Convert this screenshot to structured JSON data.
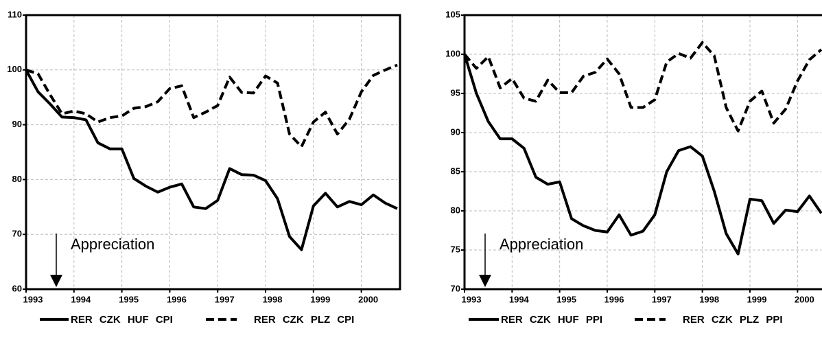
{
  "chart_data": [
    {
      "type": "line",
      "x": [
        1993,
        1993.25,
        1993.5,
        1993.75,
        1994,
        1994.25,
        1994.5,
        1994.75,
        1995,
        1995.25,
        1995.5,
        1995.75,
        1996,
        1996.25,
        1996.5,
        1996.75,
        1997,
        1997.25,
        1997.5,
        1997.75,
        1998,
        1998.25,
        1998.5,
        1998.75,
        1999,
        1999.25,
        1999.5,
        1999.75,
        2000,
        2000.25,
        2000.5,
        2000.75
      ],
      "series": [
        {
          "name": "RER CZK HUF CPI",
          "color": "#000000",
          "dash": "solid",
          "values": [
            100,
            96,
            93.8,
            91.4,
            91.3,
            90.9,
            86.7,
            85.6,
            85.6,
            80.2,
            78.8,
            77.7,
            78.6,
            79.2,
            75,
            74.7,
            76.2,
            82,
            80.9,
            80.8,
            79.8,
            76.5,
            69.6,
            67.2,
            75.2,
            77.5,
            75,
            76,
            75.4,
            77.2,
            75.7,
            74.7
          ]
        },
        {
          "name": "RER CZK PLZ CPI",
          "color": "#000000",
          "dash": "dashed",
          "values": [
            100,
            99.3,
            95.5,
            92,
            92.5,
            92,
            90.5,
            91.3,
            91.6,
            93,
            93.3,
            94.2,
            96.6,
            97.1,
            91.3,
            92.3,
            93.5,
            98.7,
            95.9,
            95.8,
            98.9,
            97.6,
            88.3,
            86,
            90.5,
            92.3,
            88.3,
            91,
            96,
            99,
            100,
            100.9
          ]
        }
      ],
      "xlim": [
        1993,
        2000.75
      ],
      "ylim": [
        60,
        110
      ],
      "xticks": [
        1993,
        1994,
        1995,
        1996,
        1997,
        1998,
        1999,
        2000
      ],
      "yticks": [
        60,
        70,
        80,
        90,
        100,
        110
      ],
      "grid": true,
      "annotation": "Appreciation"
    },
    {
      "type": "line",
      "x": [
        1993,
        1993.25,
        1993.5,
        1993.75,
        1994,
        1994.25,
        1994.5,
        1994.75,
        1995,
        1995.25,
        1995.5,
        1995.75,
        1996,
        1996.25,
        1996.5,
        1996.75,
        1997,
        1997.25,
        1997.5,
        1997.75,
        1998,
        1998.25,
        1998.5,
        1998.75,
        1999,
        1999.25,
        1999.5,
        1999.75,
        2000,
        2000.25,
        2000.5
      ],
      "series": [
        {
          "name": "RER CZK HUF PPI",
          "color": "#000000",
          "dash": "solid",
          "values": [
            100,
            95,
            91.4,
            89.2,
            89.2,
            88,
            84.3,
            83.4,
            83.7,
            79,
            78.1,
            77.5,
            77.3,
            79.5,
            76.9,
            77.4,
            79.5,
            85,
            87.7,
            88.2,
            87,
            82.5,
            77.1,
            74.5,
            81.5,
            81.3,
            78.4,
            80.1,
            79.9,
            81.9,
            79.7
          ]
        },
        {
          "name": "RER CZK PLZ PPI",
          "color": "#000000",
          "dash": "dashed",
          "values": [
            100,
            98.2,
            99.7,
            95.7,
            96.9,
            94.4,
            94,
            96.7,
            95.1,
            95.1,
            97.2,
            97.7,
            99.4,
            97.5,
            93.2,
            93.2,
            94.2,
            99,
            100.1,
            99.5,
            101.5,
            99.8,
            93.2,
            90.2,
            94,
            95.3,
            91.2,
            93,
            96.6,
            99.3,
            100.6
          ]
        }
      ],
      "xlim": [
        1993,
        2000.5
      ],
      "ylim": [
        70,
        105
      ],
      "xticks": [
        1993,
        1994,
        1995,
        1996,
        1997,
        1998,
        1999,
        2000
      ],
      "yticks": [
        70,
        75,
        80,
        85,
        90,
        95,
        100,
        105
      ],
      "grid": true,
      "annotation": "Appreciation"
    }
  ]
}
